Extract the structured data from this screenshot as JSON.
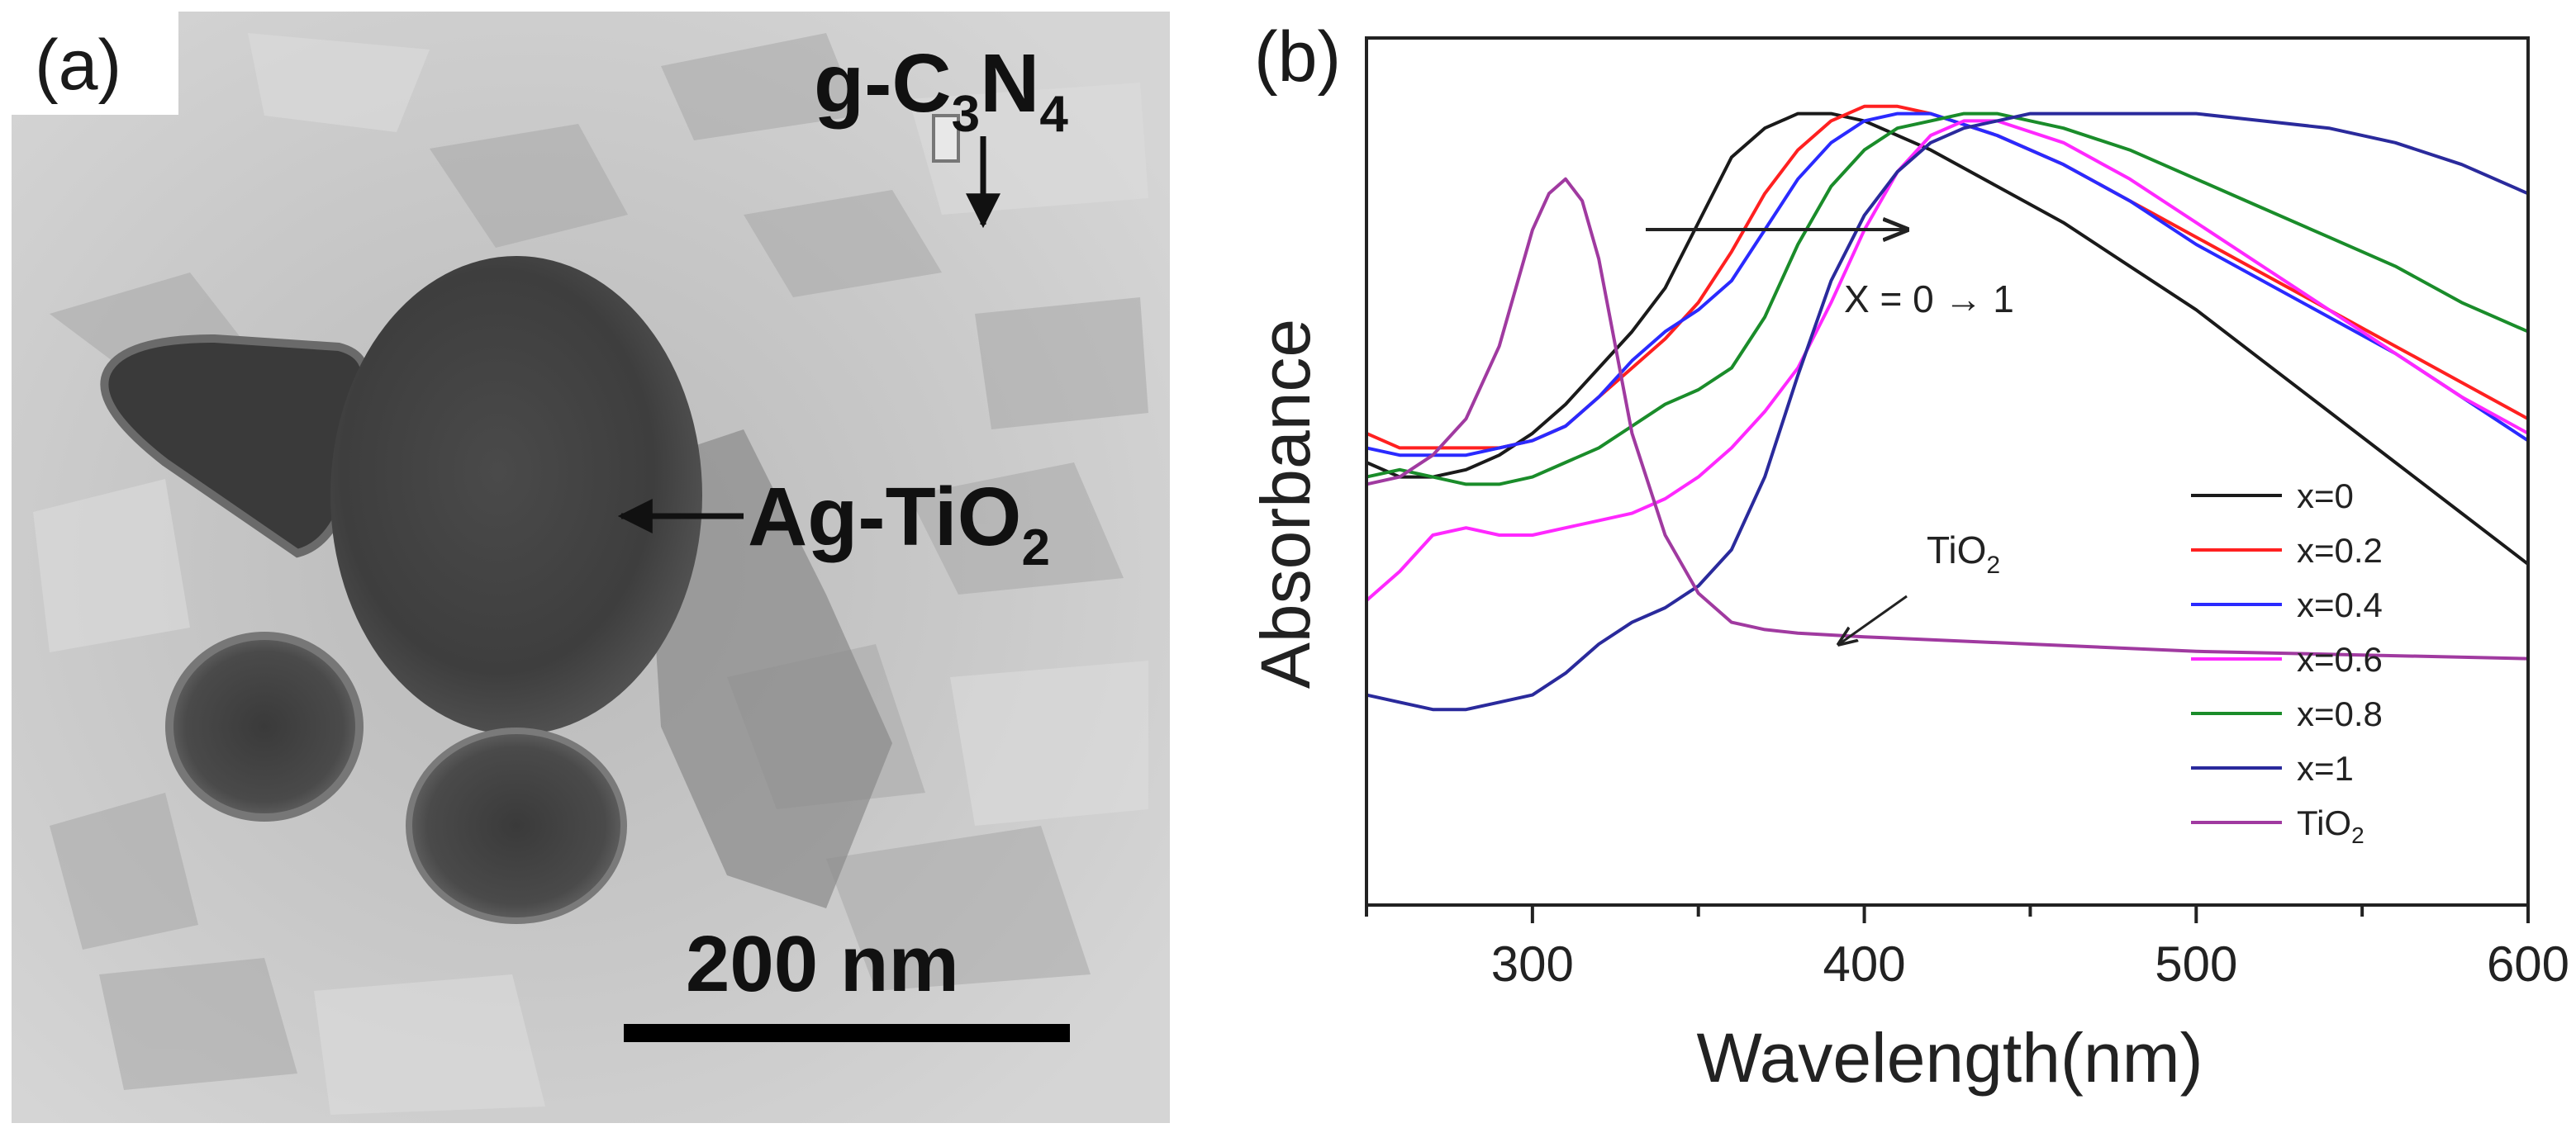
{
  "panel_a": {
    "label": "(a)",
    "gcn_prefix": "g-C",
    "gcn_sub_3": "3",
    "gcn_n": "N",
    "gcn_sub_4": "4",
    "agtio_main": "Ag-TiO",
    "agtio_sub": "2",
    "scale_bar_label": "200 nm"
  },
  "panel_b": {
    "label": "(b)"
  },
  "chart_data": {
    "type": "line",
    "title": "",
    "xlabel": "Wavelength(nm)",
    "ylabel": "Absorbance",
    "xlim": [
      250,
      600
    ],
    "ylim": [
      0,
      1
    ],
    "xticks": [
      300,
      400,
      500,
      600
    ],
    "y_tick_labels_shown": false,
    "grid": false,
    "legend_position": "right",
    "annotations": [
      {
        "text": "X = 0 → 1",
        "note": "horizontal arrow pointing right, red shift with increasing x"
      },
      {
        "text": "TiO",
        "sub": "2",
        "note": "arrow pointing to TiO2 baseline"
      }
    ],
    "series": [
      {
        "name": "x=0",
        "sub": "",
        "color": "#1a1a1a",
        "x": [
          250,
          260,
          270,
          280,
          290,
          300,
          310,
          320,
          330,
          340,
          350,
          360,
          370,
          380,
          390,
          400,
          420,
          440,
          460,
          480,
          500,
          520,
          540,
          560,
          580,
          600
        ],
        "y": [
          0.5,
          0.48,
          0.48,
          0.49,
          0.51,
          0.54,
          0.58,
          0.63,
          0.68,
          0.74,
          0.83,
          0.92,
          0.96,
          0.98,
          0.98,
          0.97,
          0.93,
          0.88,
          0.83,
          0.77,
          0.71,
          0.64,
          0.57,
          0.5,
          0.43,
          0.36
        ]
      },
      {
        "name": "x=0.2",
        "sub": "",
        "color": "#ff2020",
        "x": [
          250,
          260,
          270,
          280,
          290,
          300,
          310,
          320,
          330,
          340,
          350,
          360,
          370,
          380,
          390,
          400,
          410,
          420,
          440,
          460,
          480,
          500,
          520,
          540,
          560,
          580,
          600
        ],
        "y": [
          0.54,
          0.52,
          0.52,
          0.52,
          0.52,
          0.53,
          0.55,
          0.59,
          0.63,
          0.67,
          0.72,
          0.79,
          0.87,
          0.93,
          0.97,
          0.99,
          0.99,
          0.98,
          0.95,
          0.91,
          0.86,
          0.81,
          0.76,
          0.71,
          0.66,
          0.61,
          0.56
        ]
      },
      {
        "name": "x=0.4",
        "sub": "",
        "color": "#2a2aff",
        "x": [
          250,
          260,
          270,
          280,
          290,
          300,
          310,
          320,
          330,
          340,
          350,
          360,
          370,
          380,
          390,
          400,
          410,
          420,
          440,
          460,
          480,
          500,
          520,
          540,
          560,
          580,
          600
        ],
        "y": [
          0.52,
          0.51,
          0.51,
          0.51,
          0.52,
          0.53,
          0.55,
          0.59,
          0.64,
          0.68,
          0.71,
          0.75,
          0.82,
          0.89,
          0.94,
          0.97,
          0.98,
          0.98,
          0.95,
          0.91,
          0.86,
          0.8,
          0.75,
          0.7,
          0.65,
          0.59,
          0.53
        ]
      },
      {
        "name": "x=0.6",
        "sub": "",
        "color": "#ff28ff",
        "x": [
          250,
          260,
          270,
          280,
          290,
          300,
          310,
          320,
          330,
          340,
          350,
          360,
          370,
          380,
          390,
          400,
          410,
          420,
          430,
          440,
          460,
          480,
          500,
          520,
          540,
          560,
          580,
          600
        ],
        "y": [
          0.31,
          0.35,
          0.4,
          0.41,
          0.4,
          0.4,
          0.41,
          0.42,
          0.43,
          0.45,
          0.48,
          0.52,
          0.57,
          0.63,
          0.72,
          0.82,
          0.9,
          0.95,
          0.97,
          0.97,
          0.94,
          0.89,
          0.83,
          0.77,
          0.71,
          0.65,
          0.59,
          0.54
        ]
      },
      {
        "name": "x=0.8",
        "sub": "",
        "color": "#1a8c2a",
        "x": [
          250,
          260,
          270,
          280,
          290,
          300,
          310,
          320,
          330,
          340,
          350,
          360,
          370,
          380,
          390,
          400,
          410,
          420,
          430,
          440,
          460,
          480,
          500,
          520,
          540,
          560,
          580,
          600
        ],
        "y": [
          0.48,
          0.49,
          0.48,
          0.47,
          0.47,
          0.48,
          0.5,
          0.52,
          0.55,
          0.58,
          0.6,
          0.63,
          0.7,
          0.8,
          0.88,
          0.93,
          0.96,
          0.97,
          0.98,
          0.98,
          0.96,
          0.93,
          0.89,
          0.85,
          0.81,
          0.77,
          0.72,
          0.68
        ]
      },
      {
        "name": "x=1",
        "sub": "",
        "color": "#2a2a9c",
        "x": [
          250,
          260,
          270,
          280,
          290,
          300,
          310,
          320,
          330,
          340,
          350,
          360,
          370,
          380,
          390,
          400,
          410,
          420,
          430,
          440,
          450,
          460,
          480,
          500,
          520,
          540,
          560,
          580,
          600
        ],
        "y": [
          0.18,
          0.17,
          0.16,
          0.16,
          0.17,
          0.18,
          0.21,
          0.25,
          0.28,
          0.3,
          0.33,
          0.38,
          0.48,
          0.62,
          0.75,
          0.84,
          0.9,
          0.94,
          0.96,
          0.97,
          0.98,
          0.98,
          0.98,
          0.98,
          0.97,
          0.96,
          0.94,
          0.91,
          0.87
        ]
      },
      {
        "name": "TiO",
        "sub": "2",
        "color": "#a03aa0",
        "x": [
          250,
          260,
          270,
          280,
          290,
          295,
          300,
          305,
          310,
          315,
          320,
          325,
          330,
          340,
          350,
          360,
          370,
          380,
          400,
          450,
          500,
          550,
          600
        ],
        "y": [
          0.47,
          0.48,
          0.51,
          0.56,
          0.66,
          0.74,
          0.82,
          0.87,
          0.89,
          0.86,
          0.78,
          0.66,
          0.54,
          0.4,
          0.32,
          0.28,
          0.27,
          0.265,
          0.26,
          0.25,
          0.24,
          0.235,
          0.23
        ]
      }
    ]
  }
}
